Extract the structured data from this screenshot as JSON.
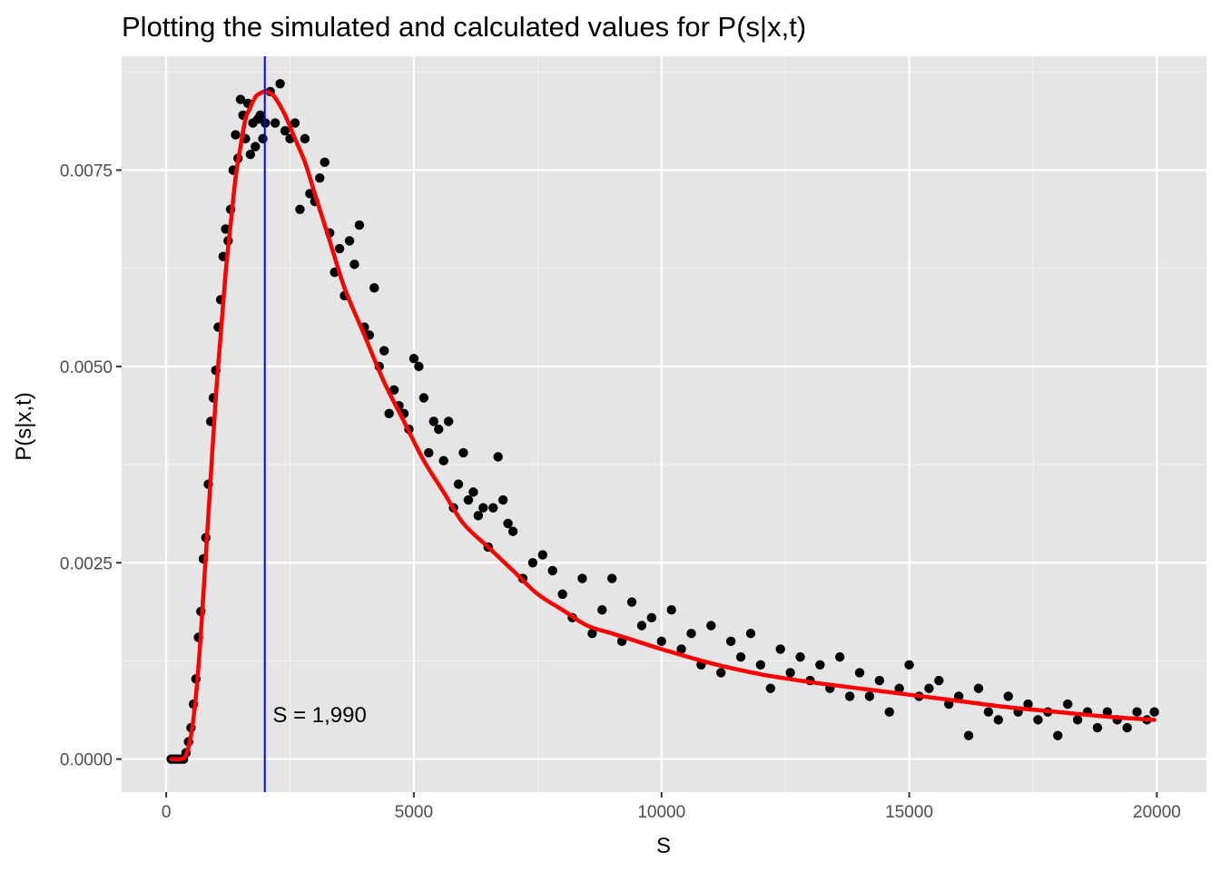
{
  "chart_data": {
    "type": "scatter",
    "title": "Plotting the simulated and calculated values for P(s|x,t)",
    "xlabel": "S",
    "ylabel": "P(s|x,t)",
    "xlim": [
      -900,
      21000
    ],
    "ylim": [
      -0.00042,
      0.00895
    ],
    "x_ticks": [
      0,
      5000,
      10000,
      15000,
      20000
    ],
    "x_tick_labels": [
      "0",
      "5000",
      "10000",
      "15000",
      "20000"
    ],
    "y_ticks": [
      0,
      0.0025,
      0.005,
      0.0075
    ],
    "y_tick_labels": [
      "0.0000",
      "0.0025",
      "0.0050",
      "0.0075"
    ],
    "grid": true,
    "background": "#e5e5e5",
    "grid_color": "#ffffff",
    "annotation": {
      "x": 2150,
      "y": 0.00047,
      "text": "S = 1,990"
    },
    "vline": {
      "x": 1990,
      "color": "#0000ff"
    },
    "series": [
      {
        "kind": "points",
        "color": "#000000",
        "x": [
          100,
          150,
          200,
          250,
          300,
          350,
          400,
          450,
          500,
          550,
          600,
          650,
          700,
          750,
          800,
          850,
          900,
          950,
          1000,
          1050,
          1100,
          1150,
          1200,
          1250,
          1300,
          1350,
          1400,
          1450,
          1500,
          1550,
          1600,
          1650,
          1700,
          1750,
          1800,
          1850,
          1900,
          1950,
          2000,
          2100,
          2200,
          2300,
          2400,
          2500,
          2600,
          2700,
          2800,
          2900,
          3000,
          3100,
          3200,
          3300,
          3400,
          3500,
          3600,
          3700,
          3800,
          3900,
          4000,
          4100,
          4200,
          4300,
          4400,
          4500,
          4600,
          4700,
          4800,
          4900,
          5000,
          5100,
          5200,
          5300,
          5400,
          5500,
          5600,
          5700,
          5800,
          5900,
          6000,
          6100,
          6200,
          6300,
          6400,
          6500,
          6600,
          6700,
          6800,
          6900,
          7000,
          7200,
          7400,
          7600,
          7800,
          8000,
          8200,
          8400,
          8600,
          8800,
          9000,
          9200,
          9400,
          9600,
          9800,
          10000,
          10200,
          10400,
          10600,
          10800,
          11000,
          11200,
          11400,
          11600,
          11800,
          12000,
          12200,
          12400,
          12600,
          12800,
          13000,
          13200,
          13400,
          13600,
          13800,
          14000,
          14200,
          14400,
          14600,
          14800,
          15000,
          15200,
          15400,
          15600,
          15800,
          16000,
          16200,
          16400,
          16600,
          16800,
          17000,
          17200,
          17400,
          17600,
          17800,
          18000,
          18200,
          18400,
          18600,
          18800,
          19000,
          19200,
          19400,
          19600,
          19800,
          19950
        ],
        "y": [
          0.0,
          0.0,
          0.0,
          0.0,
          0.0,
          0.0,
          8e-05,
          0.00022,
          0.0004,
          0.0007,
          0.00102,
          0.00155,
          0.00188,
          0.00255,
          0.00282,
          0.0035,
          0.0043,
          0.0046,
          0.00495,
          0.0055,
          0.00585,
          0.0064,
          0.00675,
          0.0066,
          0.007,
          0.0075,
          0.00795,
          0.00765,
          0.0084,
          0.0082,
          0.0079,
          0.00835,
          0.0077,
          0.0081,
          0.0078,
          0.00815,
          0.0082,
          0.0079,
          0.0081,
          0.0085,
          0.0081,
          0.0086,
          0.008,
          0.0079,
          0.0081,
          0.007,
          0.0079,
          0.0072,
          0.0071,
          0.0074,
          0.0076,
          0.0067,
          0.0062,
          0.0065,
          0.0059,
          0.0066,
          0.0063,
          0.0068,
          0.0055,
          0.0054,
          0.006,
          0.005,
          0.0052,
          0.0044,
          0.0047,
          0.0045,
          0.0044,
          0.0042,
          0.0051,
          0.005,
          0.0046,
          0.0039,
          0.0043,
          0.0042,
          0.0038,
          0.0043,
          0.0032,
          0.0035,
          0.0039,
          0.0033,
          0.0034,
          0.0031,
          0.0032,
          0.0027,
          0.0032,
          0.00385,
          0.0033,
          0.003,
          0.0029,
          0.0023,
          0.0025,
          0.0026,
          0.0024,
          0.0021,
          0.0018,
          0.0023,
          0.0016,
          0.0019,
          0.0023,
          0.0015,
          0.002,
          0.0017,
          0.0018,
          0.0015,
          0.0019,
          0.0014,
          0.0016,
          0.0012,
          0.0017,
          0.0011,
          0.0015,
          0.0013,
          0.0016,
          0.0012,
          0.0009,
          0.0014,
          0.0011,
          0.0013,
          0.001,
          0.0012,
          0.0009,
          0.0013,
          0.0008,
          0.0011,
          0.0008,
          0.001,
          0.0006,
          0.0009,
          0.0012,
          0.0008,
          0.0009,
          0.001,
          0.0007,
          0.0008,
          0.0003,
          0.0009,
          0.0006,
          0.0005,
          0.0008,
          0.0006,
          0.0007,
          0.0005,
          0.0006,
          0.0003,
          0.0007,
          0.0005,
          0.0006,
          0.0004,
          0.0006,
          0.0005,
          0.0004,
          0.0006,
          0.0005,
          0.0006
        ]
      },
      {
        "kind": "curve",
        "color": "#ff0000",
        "x": [
          100,
          300,
          400,
          500,
          600,
          700,
          800,
          900,
          1000,
          1100,
          1200,
          1300,
          1400,
          1500,
          1600,
          1700,
          1800,
          1900,
          1990,
          2100,
          2200,
          2400,
          2600,
          2800,
          3000,
          3300,
          3600,
          4000,
          4400,
          4800,
          5200,
          5600,
          6000,
          6500,
          7000,
          7500,
          8000,
          8500,
          9000,
          9500,
          10000,
          11000,
          12000,
          13000,
          14000,
          15000,
          16000,
          17000,
          18000,
          19000,
          19950
        ],
        "y": [
          0.0,
          0.0,
          5e-05,
          0.0003,
          0.0008,
          0.0016,
          0.0026,
          0.0036,
          0.0046,
          0.0054,
          0.0062,
          0.0068,
          0.0074,
          0.0078,
          0.00815,
          0.0083,
          0.00843,
          0.00848,
          0.0085,
          0.00848,
          0.00842,
          0.0082,
          0.0079,
          0.0076,
          0.0072,
          0.0066,
          0.006,
          0.0054,
          0.0048,
          0.0043,
          0.0038,
          0.0034,
          0.003,
          0.0027,
          0.0024,
          0.0021,
          0.0019,
          0.0017,
          0.0016,
          0.0015,
          0.0014,
          0.00122,
          0.00108,
          0.00098,
          0.0009,
          0.00082,
          0.00074,
          0.00066,
          0.0006,
          0.00054,
          0.0005
        ]
      }
    ]
  }
}
